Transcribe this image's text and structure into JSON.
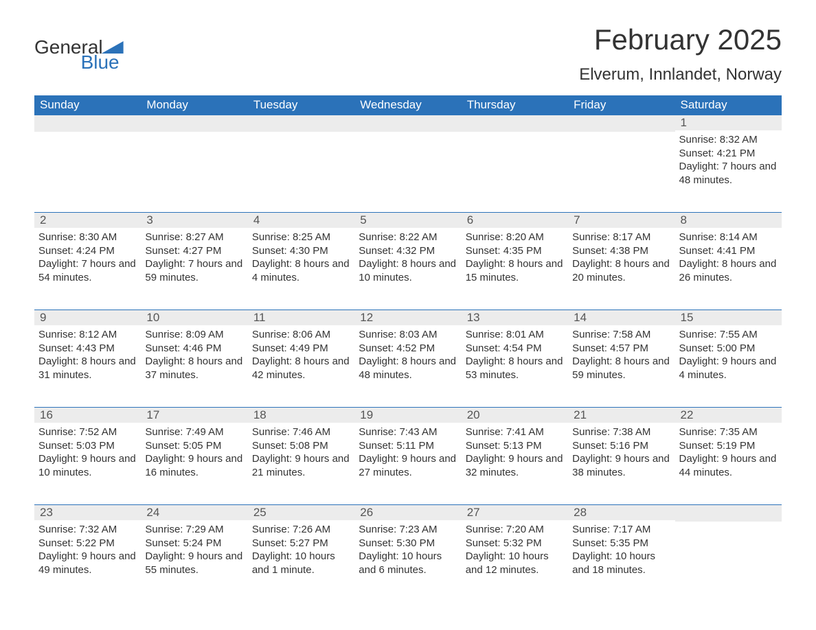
{
  "logo": {
    "line1": "General",
    "line2": "Blue"
  },
  "title": "February 2025",
  "location": "Elverum, Innlandet, Norway",
  "colors": {
    "header_bg": "#2b72b9",
    "header_text": "#ffffff",
    "day_row_bg": "#ececec",
    "text": "#333333",
    "brand_blue": "#2b72b9",
    "background": "#ffffff"
  },
  "day_headers": [
    "Sunday",
    "Monday",
    "Tuesday",
    "Wednesday",
    "Thursday",
    "Friday",
    "Saturday"
  ],
  "weeks": [
    [
      {
        "day": "",
        "sunrise": "",
        "sunset": "",
        "daylight": ""
      },
      {
        "day": "",
        "sunrise": "",
        "sunset": "",
        "daylight": ""
      },
      {
        "day": "",
        "sunrise": "",
        "sunset": "",
        "daylight": ""
      },
      {
        "day": "",
        "sunrise": "",
        "sunset": "",
        "daylight": ""
      },
      {
        "day": "",
        "sunrise": "",
        "sunset": "",
        "daylight": ""
      },
      {
        "day": "",
        "sunrise": "",
        "sunset": "",
        "daylight": ""
      },
      {
        "day": "1",
        "sunrise": "Sunrise: 8:32 AM",
        "sunset": "Sunset: 4:21 PM",
        "daylight": "Daylight: 7 hours and 48 minutes."
      }
    ],
    [
      {
        "day": "2",
        "sunrise": "Sunrise: 8:30 AM",
        "sunset": "Sunset: 4:24 PM",
        "daylight": "Daylight: 7 hours and 54 minutes."
      },
      {
        "day": "3",
        "sunrise": "Sunrise: 8:27 AM",
        "sunset": "Sunset: 4:27 PM",
        "daylight": "Daylight: 7 hours and 59 minutes."
      },
      {
        "day": "4",
        "sunrise": "Sunrise: 8:25 AM",
        "sunset": "Sunset: 4:30 PM",
        "daylight": "Daylight: 8 hours and 4 minutes."
      },
      {
        "day": "5",
        "sunrise": "Sunrise: 8:22 AM",
        "sunset": "Sunset: 4:32 PM",
        "daylight": "Daylight: 8 hours and 10 minutes."
      },
      {
        "day": "6",
        "sunrise": "Sunrise: 8:20 AM",
        "sunset": "Sunset: 4:35 PM",
        "daylight": "Daylight: 8 hours and 15 minutes."
      },
      {
        "day": "7",
        "sunrise": "Sunrise: 8:17 AM",
        "sunset": "Sunset: 4:38 PM",
        "daylight": "Daylight: 8 hours and 20 minutes."
      },
      {
        "day": "8",
        "sunrise": "Sunrise: 8:14 AM",
        "sunset": "Sunset: 4:41 PM",
        "daylight": "Daylight: 8 hours and 26 minutes."
      }
    ],
    [
      {
        "day": "9",
        "sunrise": "Sunrise: 8:12 AM",
        "sunset": "Sunset: 4:43 PM",
        "daylight": "Daylight: 8 hours and 31 minutes."
      },
      {
        "day": "10",
        "sunrise": "Sunrise: 8:09 AM",
        "sunset": "Sunset: 4:46 PM",
        "daylight": "Daylight: 8 hours and 37 minutes."
      },
      {
        "day": "11",
        "sunrise": "Sunrise: 8:06 AM",
        "sunset": "Sunset: 4:49 PM",
        "daylight": "Daylight: 8 hours and 42 minutes."
      },
      {
        "day": "12",
        "sunrise": "Sunrise: 8:03 AM",
        "sunset": "Sunset: 4:52 PM",
        "daylight": "Daylight: 8 hours and 48 minutes."
      },
      {
        "day": "13",
        "sunrise": "Sunrise: 8:01 AM",
        "sunset": "Sunset: 4:54 PM",
        "daylight": "Daylight: 8 hours and 53 minutes."
      },
      {
        "day": "14",
        "sunrise": "Sunrise: 7:58 AM",
        "sunset": "Sunset: 4:57 PM",
        "daylight": "Daylight: 8 hours and 59 minutes."
      },
      {
        "day": "15",
        "sunrise": "Sunrise: 7:55 AM",
        "sunset": "Sunset: 5:00 PM",
        "daylight": "Daylight: 9 hours and 4 minutes."
      }
    ],
    [
      {
        "day": "16",
        "sunrise": "Sunrise: 7:52 AM",
        "sunset": "Sunset: 5:03 PM",
        "daylight": "Daylight: 9 hours and 10 minutes."
      },
      {
        "day": "17",
        "sunrise": "Sunrise: 7:49 AM",
        "sunset": "Sunset: 5:05 PM",
        "daylight": "Daylight: 9 hours and 16 minutes."
      },
      {
        "day": "18",
        "sunrise": "Sunrise: 7:46 AM",
        "sunset": "Sunset: 5:08 PM",
        "daylight": "Daylight: 9 hours and 21 minutes."
      },
      {
        "day": "19",
        "sunrise": "Sunrise: 7:43 AM",
        "sunset": "Sunset: 5:11 PM",
        "daylight": "Daylight: 9 hours and 27 minutes."
      },
      {
        "day": "20",
        "sunrise": "Sunrise: 7:41 AM",
        "sunset": "Sunset: 5:13 PM",
        "daylight": "Daylight: 9 hours and 32 minutes."
      },
      {
        "day": "21",
        "sunrise": "Sunrise: 7:38 AM",
        "sunset": "Sunset: 5:16 PM",
        "daylight": "Daylight: 9 hours and 38 minutes."
      },
      {
        "day": "22",
        "sunrise": "Sunrise: 7:35 AM",
        "sunset": "Sunset: 5:19 PM",
        "daylight": "Daylight: 9 hours and 44 minutes."
      }
    ],
    [
      {
        "day": "23",
        "sunrise": "Sunrise: 7:32 AM",
        "sunset": "Sunset: 5:22 PM",
        "daylight": "Daylight: 9 hours and 49 minutes."
      },
      {
        "day": "24",
        "sunrise": "Sunrise: 7:29 AM",
        "sunset": "Sunset: 5:24 PM",
        "daylight": "Daylight: 9 hours and 55 minutes."
      },
      {
        "day": "25",
        "sunrise": "Sunrise: 7:26 AM",
        "sunset": "Sunset: 5:27 PM",
        "daylight": "Daylight: 10 hours and 1 minute."
      },
      {
        "day": "26",
        "sunrise": "Sunrise: 7:23 AM",
        "sunset": "Sunset: 5:30 PM",
        "daylight": "Daylight: 10 hours and 6 minutes."
      },
      {
        "day": "27",
        "sunrise": "Sunrise: 7:20 AM",
        "sunset": "Sunset: 5:32 PM",
        "daylight": "Daylight: 10 hours and 12 minutes."
      },
      {
        "day": "28",
        "sunrise": "Sunrise: 7:17 AM",
        "sunset": "Sunset: 5:35 PM",
        "daylight": "Daylight: 10 hours and 18 minutes."
      },
      {
        "day": "",
        "sunrise": "",
        "sunset": "",
        "daylight": ""
      }
    ]
  ]
}
